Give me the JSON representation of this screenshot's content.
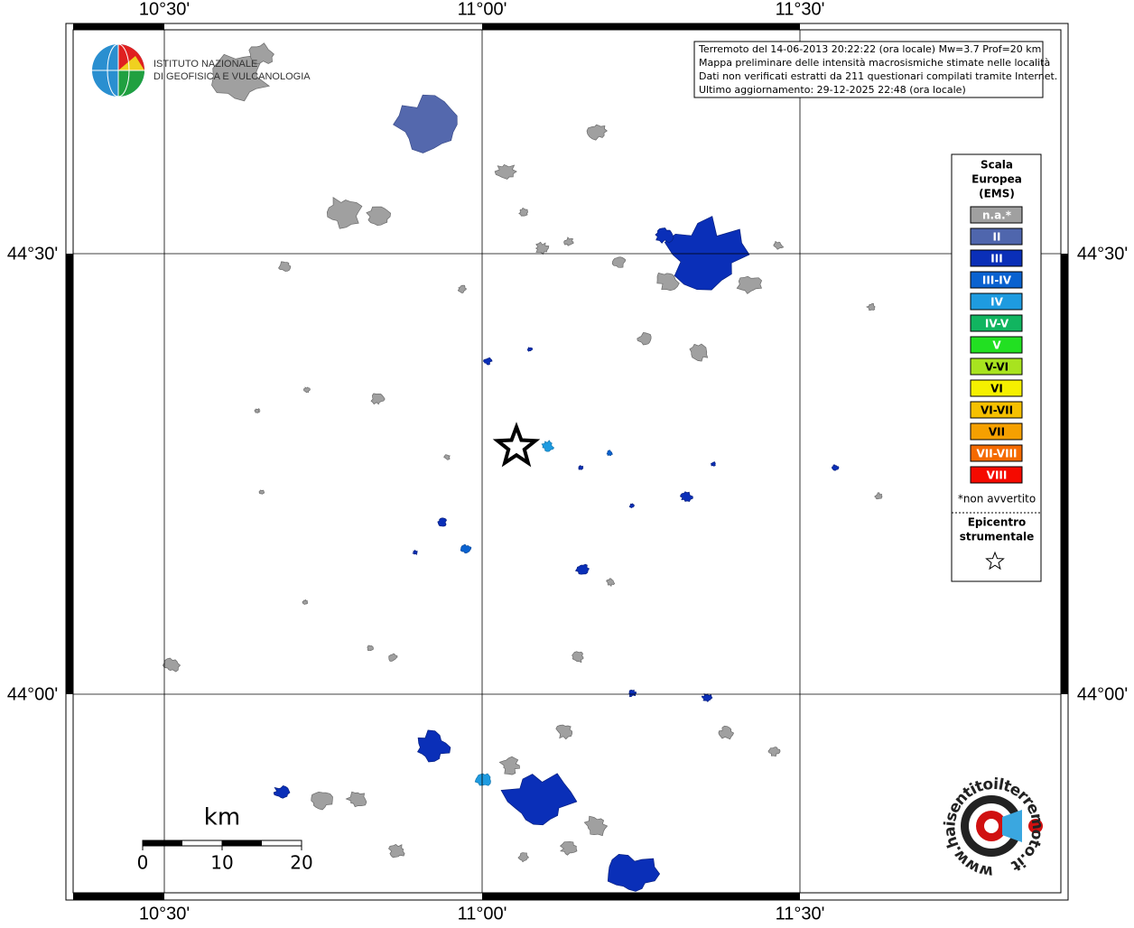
{
  "info": [
    "Terremoto del 14-06-2013 20:22:22 (ora locale) Mw=3.7 Prof=20 km",
    "Mappa preliminare delle intensità macrosismiche stimate nelle località",
    "Dati non verificati estratti da 211 questionari compilati tramite Internet.",
    "Ultimo aggiornamento: 29-12-2025 22:48 (ora locale)"
  ],
  "institute": [
    "ISTITUTO NAZIONALE",
    "DI GEOFISICA E VULCANOLOGIA"
  ],
  "longitude_labels": [
    "10°30'",
    "11°00'",
    "11°30'"
  ],
  "latitude_labels": [
    "44°30'",
    "44°00'"
  ],
  "legend": {
    "title": [
      "Scala",
      "Europea",
      "(EMS)"
    ],
    "items": [
      {
        "label": "n.a.*",
        "color": "#a0a0a0"
      },
      {
        "label": "II",
        "color": "#4f66ad"
      },
      {
        "label": "III",
        "color": "#0a2fb8"
      },
      {
        "label": "III-IV",
        "color": "#0a62d0"
      },
      {
        "label": "IV",
        "color": "#1e9be0"
      },
      {
        "label": "IV-V",
        "color": "#11b560"
      },
      {
        "label": "V",
        "color": "#22e022"
      },
      {
        "label": "V-VI",
        "color": "#a8e31f"
      },
      {
        "label": "VI",
        "color": "#f5f000"
      },
      {
        "label": "VI-VII",
        "color": "#f5c000"
      },
      {
        "label": "VII",
        "color": "#f5a000"
      },
      {
        "label": "VII-VIII",
        "color": "#f56a00"
      },
      {
        "label": "VIII",
        "color": "#f50a00"
      }
    ],
    "note": "*non avvertito",
    "epicenter": [
      "Epicentro",
      "strumentale"
    ]
  },
  "scale": {
    "unit": "km",
    "labels": [
      "0",
      "10",
      "20"
    ]
  },
  "website": "www.haisentitoilterremoto.it"
}
